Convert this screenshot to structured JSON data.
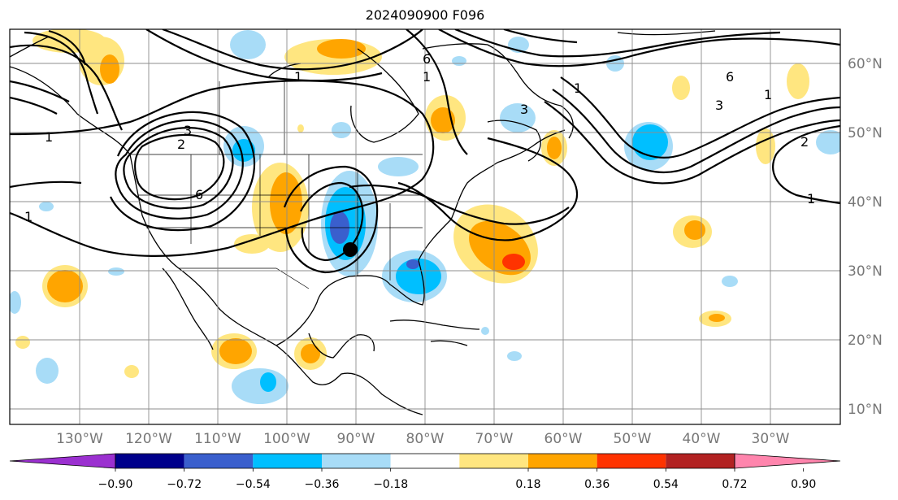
{
  "title": "2024090900 F096",
  "longitude_labels": [
    "130°W",
    "120°W",
    "110°W",
    "100°W",
    "90°W",
    "80°W",
    "70°W",
    "60°W",
    "50°W",
    "40°W",
    "30°W"
  ],
  "latitude_labels": [
    "60°N",
    "50°N",
    "40°N",
    "30°N",
    "20°N",
    "10°N"
  ],
  "colorbar": {
    "ticks": [
      "−0.90",
      "−0.72",
      "−0.54",
      "−0.36",
      "−0.18",
      "0.18",
      "0.36",
      "0.54",
      "0.72",
      "0.90"
    ],
    "colors": [
      "#9b30d0",
      "#00008b",
      "#3a5fcd",
      "#00bfff",
      "#a8dcf7",
      "#ffffff",
      "#ffe680",
      "#ffa500",
      "#ff3300",
      "#b22222",
      "#ff85ad"
    ]
  },
  "contour_labels": [
    "1",
    "1",
    "1",
    "1",
    "2",
    "3",
    "3",
    "6",
    "6",
    "1",
    "1",
    "2",
    "1",
    "3",
    "6"
  ],
  "marker": "storm-center-dot"
}
